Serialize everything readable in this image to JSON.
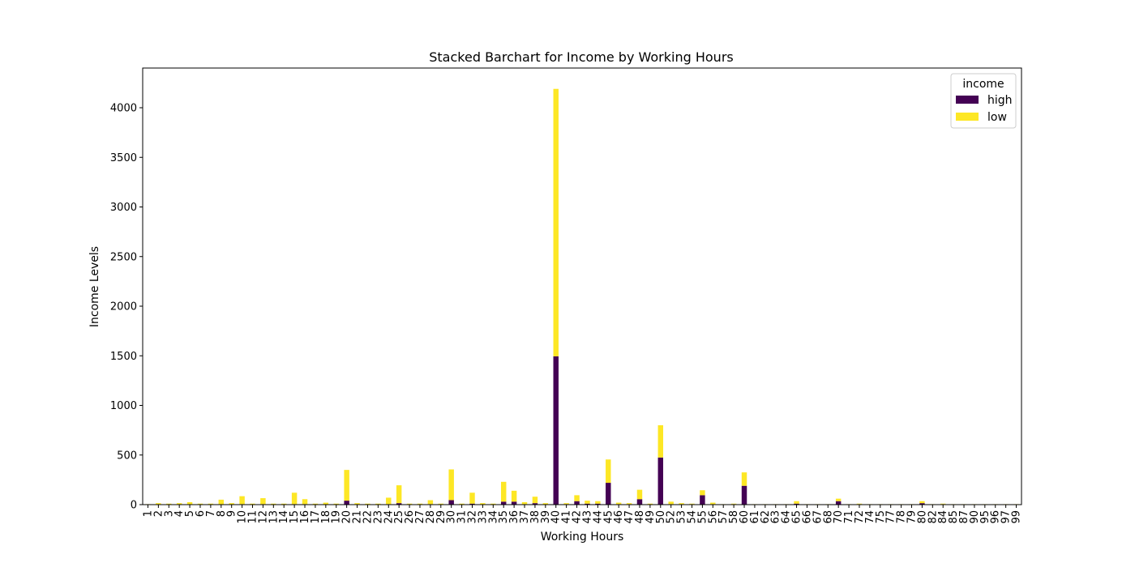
{
  "chart_data": {
    "type": "bar",
    "stacked": true,
    "title": "Stacked Barchart for Income by Working Hours",
    "xlabel": "Working Hours",
    "ylabel": "Income Levels",
    "ylim": [
      0,
      4400
    ],
    "yticks": [
      0,
      500,
      1000,
      1500,
      2000,
      2500,
      3000,
      3500,
      4000
    ],
    "grid": false,
    "legend": {
      "title": "income",
      "placement": "top-right"
    },
    "categories": [
      "1",
      "2",
      "3",
      "4",
      "5",
      "6",
      "7",
      "8",
      "9",
      "10",
      "11",
      "12",
      "13",
      "14",
      "15",
      "16",
      "17",
      "18",
      "19",
      "20",
      "21",
      "22",
      "23",
      "24",
      "25",
      "26",
      "27",
      "28",
      "29",
      "30",
      "31",
      "32",
      "33",
      "34",
      "35",
      "36",
      "37",
      "38",
      "39",
      "40",
      "41",
      "42",
      "43",
      "44",
      "45",
      "46",
      "47",
      "48",
      "49",
      "50",
      "52",
      "53",
      "54",
      "55",
      "56",
      "57",
      "58",
      "60",
      "61",
      "62",
      "63",
      "64",
      "65",
      "66",
      "67",
      "68",
      "70",
      "71",
      "72",
      "74",
      "75",
      "77",
      "78",
      "79",
      "80",
      "82",
      "84",
      "85",
      "87",
      "90",
      "95",
      "96",
      "97",
      "99"
    ],
    "series": [
      {
        "name": "high",
        "color": "#440154",
        "values": [
          0,
          0,
          0,
          0,
          0,
          0,
          0,
          0,
          0,
          5,
          0,
          5,
          0,
          0,
          5,
          5,
          0,
          0,
          0,
          40,
          0,
          0,
          0,
          5,
          15,
          0,
          0,
          5,
          0,
          45,
          0,
          10,
          0,
          0,
          30,
          30,
          5,
          15,
          0,
          1495,
          5,
          35,
          10,
          10,
          220,
          5,
          5,
          55,
          0,
          475,
          5,
          5,
          5,
          95,
          5,
          0,
          5,
          190,
          0,
          0,
          0,
          0,
          10,
          0,
          0,
          0,
          35,
          0,
          5,
          0,
          0,
          0,
          0,
          0,
          15,
          0,
          5,
          0,
          0,
          0,
          0,
          0,
          0,
          0
        ]
      },
      {
        "name": "low",
        "color": "#fde725",
        "values": [
          5,
          15,
          10,
          15,
          25,
          10,
          10,
          50,
          15,
          80,
          10,
          60,
          10,
          10,
          115,
          50,
          10,
          20,
          10,
          310,
          15,
          10,
          10,
          65,
          180,
          10,
          10,
          40,
          10,
          310,
          10,
          110,
          15,
          10,
          200,
          110,
          20,
          65,
          15,
          2695,
          10,
          60,
          30,
          25,
          235,
          15,
          10,
          95,
          10,
          325,
          25,
          10,
          5,
          50,
          15,
          5,
          5,
          135,
          5,
          5,
          5,
          5,
          25,
          5,
          5,
          5,
          25,
          5,
          5,
          5,
          5,
          5,
          5,
          5,
          20,
          5,
          5,
          5,
          5,
          5,
          5,
          5,
          5,
          5
        ]
      }
    ]
  }
}
